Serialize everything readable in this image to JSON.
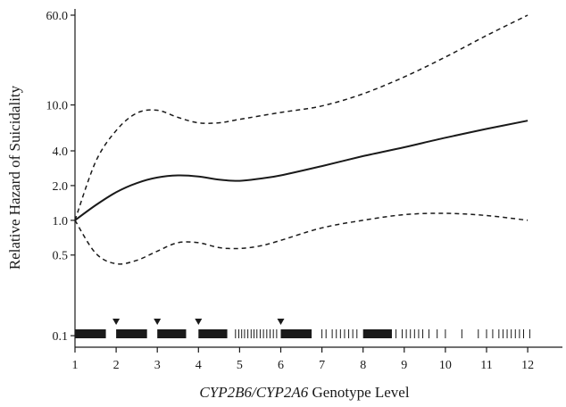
{
  "chart_data": {
    "type": "line",
    "xlabel_italic_part": "CYP2B6/CYP2A6",
    "xlabel_rest": " Genotype Level",
    "ylabel": "Relative Hazard of Suicidality",
    "x_ticks": [
      1,
      2,
      3,
      4,
      5,
      6,
      7,
      8,
      9,
      10,
      11,
      12
    ],
    "y_ticks": [
      "0.1",
      "0.5",
      "1.0",
      "2.0",
      "4.0",
      "10.0",
      "60.0"
    ],
    "y_scale": "log",
    "xlim": [
      1,
      12.9
    ],
    "ylim": [
      0.09,
      60
    ],
    "series": [
      {
        "style": "solid",
        "points": [
          [
            1,
            1.0
          ],
          [
            1.5,
            1.35
          ],
          [
            2,
            1.75
          ],
          [
            2.5,
            2.1
          ],
          [
            3,
            2.35
          ],
          [
            3.5,
            2.45
          ],
          [
            4,
            2.4
          ],
          [
            4.5,
            2.25
          ],
          [
            5,
            2.2
          ],
          [
            5.5,
            2.3
          ],
          [
            6,
            2.45
          ],
          [
            7,
            2.95
          ],
          [
            8,
            3.6
          ],
          [
            9,
            4.3
          ],
          [
            10,
            5.2
          ],
          [
            11,
            6.2
          ],
          [
            12,
            7.3
          ]
        ]
      },
      {
        "style": "dashed",
        "points": [
          [
            1,
            1.0
          ],
          [
            1.5,
            3.2
          ],
          [
            2,
            6.0
          ],
          [
            2.5,
            8.5
          ],
          [
            3,
            9.0
          ],
          [
            3.5,
            7.8
          ],
          [
            4,
            7.0
          ],
          [
            4.5,
            7.0
          ],
          [
            5,
            7.5
          ],
          [
            6,
            8.6
          ],
          [
            7,
            9.8
          ],
          [
            8,
            12.5
          ],
          [
            9,
            17.5
          ],
          [
            10,
            26
          ],
          [
            11,
            40
          ],
          [
            12,
            60
          ]
        ]
      },
      {
        "style": "dashed",
        "points": [
          [
            1,
            1.0
          ],
          [
            1.5,
            0.52
          ],
          [
            2,
            0.42
          ],
          [
            2.5,
            0.45
          ],
          [
            3,
            0.54
          ],
          [
            3.5,
            0.64
          ],
          [
            4,
            0.64
          ],
          [
            4.5,
            0.58
          ],
          [
            5,
            0.57
          ],
          [
            5.5,
            0.6
          ],
          [
            6,
            0.67
          ],
          [
            7,
            0.86
          ],
          [
            8,
            1.0
          ],
          [
            9,
            1.12
          ],
          [
            10,
            1.15
          ],
          [
            11,
            1.1
          ],
          [
            12,
            1.0
          ]
        ]
      }
    ],
    "rug_segments": [
      [
        1.0,
        1.75
      ],
      [
        2.0,
        2.75
      ],
      [
        3.0,
        3.7
      ],
      [
        4.0,
        4.7
      ],
      [
        6.0,
        6.75
      ],
      [
        8.0,
        8.7
      ]
    ],
    "rug_ticks": [
      4.9,
      4.98,
      5.05,
      5.12,
      5.2,
      5.28,
      5.35,
      5.42,
      5.5,
      5.58,
      5.66,
      5.74,
      5.82,
      5.9,
      7.0,
      7.1,
      7.25,
      7.35,
      7.45,
      7.55,
      7.65,
      7.75,
      7.85,
      8.8,
      8.95,
      9.05,
      9.15,
      9.25,
      9.35,
      9.45,
      9.6,
      9.8,
      10.0,
      10.4,
      10.8,
      11.0,
      11.15,
      11.3,
      11.4,
      11.5,
      11.6,
      11.7,
      11.8,
      11.9,
      12.05
    ],
    "triangle_markers": [
      2,
      3,
      4,
      6
    ]
  }
}
